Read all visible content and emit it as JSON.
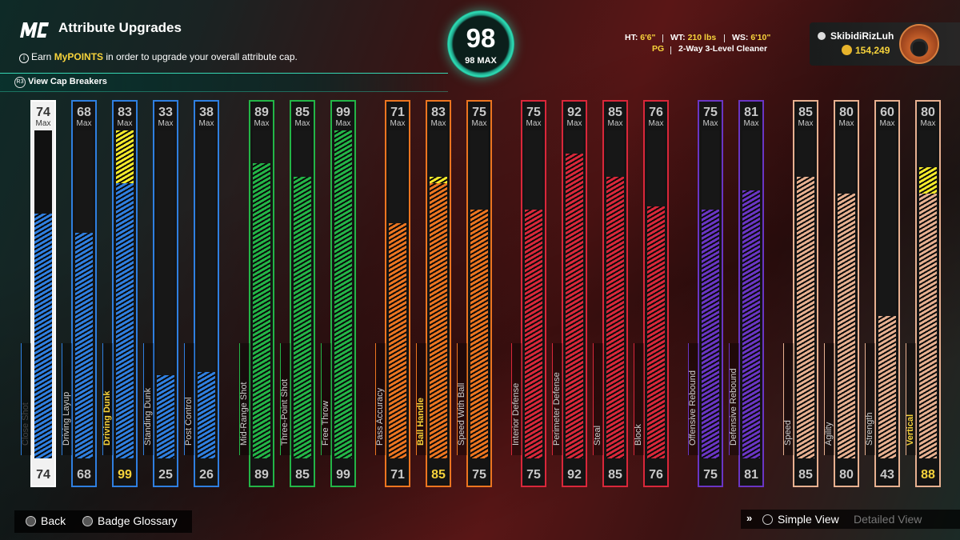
{
  "header": {
    "title": "Attribute Upgrades",
    "subtitle_pre": "Earn ",
    "subtitle_highlight": "MyPOINTS",
    "subtitle_post": " in order to upgrade your overall attribute cap.",
    "cap_breakers": "View Cap Breakers"
  },
  "overall": {
    "value": "98",
    "max_label": "98 MAX"
  },
  "player": {
    "ht_label": "HT:",
    "ht": "6'6\"",
    "wt_label": "WT:",
    "wt": "210 lbs",
    "ws_label": "WS:",
    "ws": "6'10\"",
    "position": "PG",
    "archetype": "2-Way 3-Level Cleaner",
    "gamertag": "SkibidiRizLuh",
    "coins": "154,249"
  },
  "max_label": "Max",
  "attributes": [
    {
      "name": "Close Shot",
      "max": "74",
      "current": "74",
      "color": "#2f7fe0",
      "selected": true
    },
    {
      "name": "Driving Layup",
      "max": "68",
      "current": "68",
      "color": "#2f7fe0"
    },
    {
      "name": "Driving Dunk",
      "max": "83",
      "current": "99",
      "color": "#2f7fe0",
      "upgrade": "83",
      "highlight": true
    },
    {
      "name": "Standing Dunk",
      "max": "33",
      "current": "25",
      "color": "#2f7fe0"
    },
    {
      "name": "Post Control",
      "max": "38",
      "current": "26",
      "color": "#2f7fe0"
    },
    {
      "name": "Mid-Range Shot",
      "max": "89",
      "current": "89",
      "color": "#23b547"
    },
    {
      "name": "Three-Point Shot",
      "max": "85",
      "current": "85",
      "color": "#23b547"
    },
    {
      "name": "Free Throw",
      "max": "99",
      "current": "99",
      "color": "#23b547"
    },
    {
      "name": "Pass Accuracy",
      "max": "71",
      "current": "71",
      "color": "#ec7520"
    },
    {
      "name": "Ball Handle",
      "max": "83",
      "current": "85",
      "color": "#ec7520",
      "upgrade": "83",
      "highlight": true
    },
    {
      "name": "Speed With Ball",
      "max": "75",
      "current": "75",
      "color": "#ec7520"
    },
    {
      "name": "Interior Defense",
      "max": "75",
      "current": "75",
      "color": "#d9273a"
    },
    {
      "name": "Perimeter Defense",
      "max": "92",
      "current": "92",
      "color": "#d9273a"
    },
    {
      "name": "Steal",
      "max": "85",
      "current": "85",
      "color": "#d9273a"
    },
    {
      "name": "Block",
      "max": "76",
      "current": "76",
      "color": "#d9273a"
    },
    {
      "name": "Offensive Rebound",
      "max": "75",
      "current": "75",
      "color": "#6a35c4"
    },
    {
      "name": "Defensive Rebound",
      "max": "81",
      "current": "81",
      "color": "#6a35c4"
    },
    {
      "name": "Speed",
      "max": "85",
      "current": "85",
      "color": "#e7b090"
    },
    {
      "name": "Agility",
      "max": "80",
      "current": "80",
      "color": "#e7b090"
    },
    {
      "name": "Strength",
      "max": "60",
      "current": "43",
      "color": "#e7b090"
    },
    {
      "name": "Vertical",
      "max": "80",
      "current": "88",
      "color": "#e7b090",
      "upgrade": "80",
      "highlight": true
    }
  ],
  "footer": {
    "back": "Back",
    "glossary": "Badge Glossary",
    "simple": "Simple View",
    "detailed": "Detailed View"
  },
  "colors": {
    "accent": "#37d7b3",
    "highlight": "#f7d33b"
  }
}
